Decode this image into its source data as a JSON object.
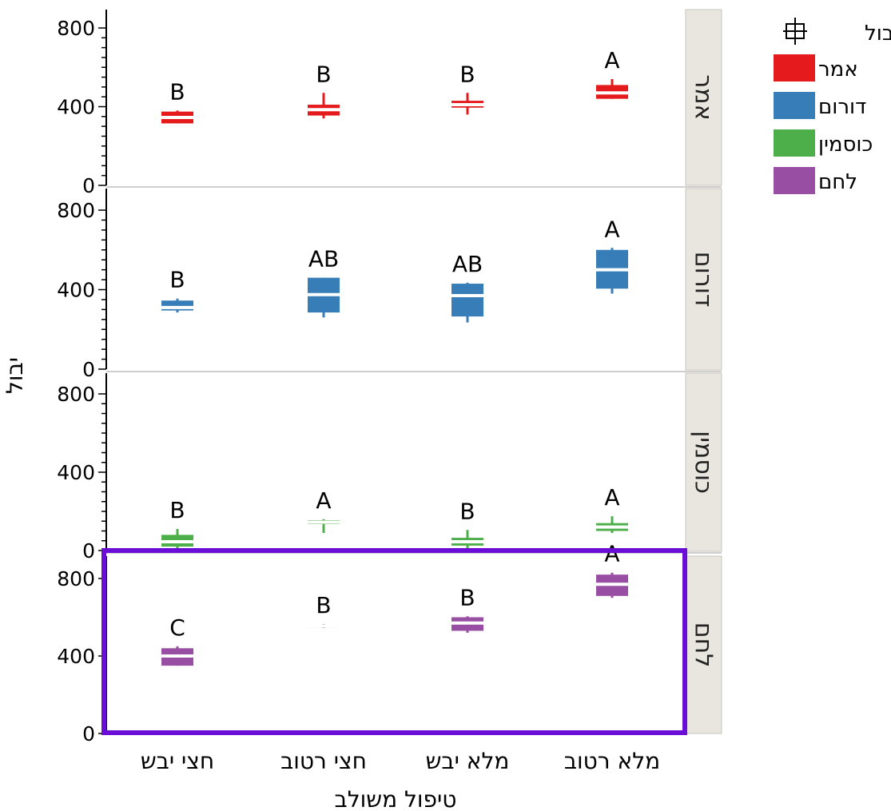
{
  "chart_data": {
    "type": "box",
    "xlabel": "טיפול משולב",
    "ylabel": "יבול",
    "categories": [
      "חצי יבש",
      "חצי רטוב",
      "מלא יבש",
      "מלא רטוב"
    ],
    "yticks": [
      0,
      400,
      800
    ],
    "ylim": [
      0,
      800
    ],
    "legend": {
      "title": "יבול",
      "placement": "top-right",
      "items": [
        {
          "label": "אמר",
          "color": "#e41a1c"
        },
        {
          "label": "דורום",
          "color": "#377eb8"
        },
        {
          "label": "כוסמין",
          "color": "#4daf4a"
        },
        {
          "label": "לחם",
          "color": "#984ea3"
        }
      ]
    },
    "highlighted_panel": "לחם",
    "highlight_color": "#6a0dd6",
    "panels": [
      {
        "label": "אמר",
        "color": "#e41a1c",
        "boxes": [
          {
            "category": "חצי יבש",
            "min": 315,
            "q1": 315,
            "median": 345,
            "q3": 375,
            "max": 380,
            "letter": "B"
          },
          {
            "category": "חצי רטוב",
            "min": 340,
            "q1": 355,
            "median": 385,
            "q3": 410,
            "max": 470,
            "letter": "B"
          },
          {
            "category": "מלא יבש",
            "min": 360,
            "q1": 395,
            "median": 410,
            "q3": 430,
            "max": 470,
            "letter": "B"
          },
          {
            "category": "מלא רטוב",
            "min": 440,
            "q1": 440,
            "median": 470,
            "q3": 510,
            "max": 540,
            "letter": "A"
          }
        ]
      },
      {
        "label": "דורום",
        "color": "#377eb8",
        "boxes": [
          {
            "category": "חצי יבש",
            "min": 285,
            "q1": 295,
            "median": 310,
            "q3": 345,
            "max": 355,
            "letter": "B"
          },
          {
            "category": "חצי רטוב",
            "min": 260,
            "q1": 285,
            "median": 375,
            "q3": 460,
            "max": 460,
            "letter": "AB"
          },
          {
            "category": "מלא יבש",
            "min": 235,
            "q1": 265,
            "median": 370,
            "q3": 430,
            "max": 435,
            "letter": "AB"
          },
          {
            "category": "מלא רטוב",
            "min": 380,
            "q1": 405,
            "median": 500,
            "q3": 600,
            "max": 610,
            "letter": "A"
          }
        ]
      },
      {
        "label": "כוסמין",
        "color": "#4daf4a",
        "boxes": [
          {
            "category": "חצי יבש",
            "min": 10,
            "q1": 20,
            "median": 45,
            "q3": 80,
            "max": 110,
            "letter": "B"
          },
          {
            "category": "חצי רטוב",
            "min": 90,
            "q1": 135,
            "median": 145,
            "q3": 155,
            "max": 160,
            "letter": "A"
          },
          {
            "category": "מלא יבש",
            "min": 10,
            "q1": 25,
            "median": 45,
            "q3": 65,
            "max": 105,
            "letter": "B"
          },
          {
            "category": "מלא רטוב",
            "min": 90,
            "q1": 100,
            "median": 120,
            "q3": 140,
            "max": 175,
            "letter": "A"
          }
        ]
      },
      {
        "label": "לחם",
        "color": "#984ea3",
        "boxes": [
          {
            "category": "חצי יבש",
            "min": 350,
            "q1": 350,
            "median": 400,
            "q3": 440,
            "max": 450,
            "letter": "C"
          },
          {
            "category": "חצי רטוב",
            "min": 545,
            "q1": 552,
            "median": 555,
            "q3": 560,
            "max": 565,
            "letter": "B"
          },
          {
            "category": "מלא יבש",
            "min": 520,
            "q1": 530,
            "median": 570,
            "q3": 600,
            "max": 605,
            "letter": "B"
          },
          {
            "category": "מלא רטוב",
            "min": 700,
            "q1": 710,
            "median": 770,
            "q3": 820,
            "max": 830,
            "letter": "A"
          }
        ]
      }
    ]
  }
}
